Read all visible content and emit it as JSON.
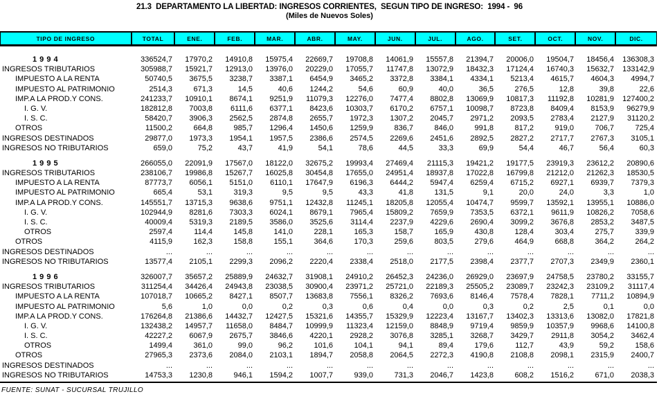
{
  "title": "21.3  DEPARTAMENTO LA LIBERTAD: INGRESOS CORRIENTES,  SEGUN TIPO DE INGRESO:  1994 -  96",
  "subtitle": "(Miles de Nuevos Soles)",
  "footer": "FUENTE: SUNAT - SUCURSAL TRUJILLO",
  "colors": {
    "header_bg": "#00FFFF",
    "border": "#000000",
    "text": "#000000",
    "page_bg": "#FFFFFF"
  },
  "table": {
    "columns": [
      "TIPO DE INGRESO",
      "TOTAL",
      "ENE.",
      "FEB.",
      "MAR.",
      "ABR.",
      "MAY.",
      "JUN.",
      "JUL.",
      "AGO.",
      "SET.",
      "OCT.",
      "NOV.",
      "DIC."
    ],
    "sections": [
      {
        "rows": [
          {
            "label": "1 9 9 4",
            "style": "year",
            "values": [
              "336524,7",
              "17970,2",
              "14910,8",
              "15975,4",
              "22669,7",
              "19708,8",
              "14061,9",
              "15557,8",
              "21394,7",
              "20006,0",
              "19504,7",
              "18456,4",
              "136308,3"
            ]
          },
          {
            "label": "INGRESOS TRIBUTARIOS",
            "indent": 0,
            "values": [
              "305988,7",
              "15921,7",
              "12913,0",
              "13976,0",
              "20229,0",
              "17055,7",
              "11747,8",
              "13072,9",
              "18432,3",
              "17124,4",
              "16740,3",
              "15632,7",
              "133142,9"
            ]
          },
          {
            "label": "IMPUESTO A LA RENTA",
            "indent": 1,
            "values": [
              "50740,5",
              "3675,5",
              "3238,7",
              "3387,1",
              "6454,9",
              "3465,2",
              "3372,8",
              "3384,1",
              "4334,1",
              "5213,4",
              "4615,7",
              "4604,3",
              "4994,7"
            ]
          },
          {
            "label": "IMPUESTO AL PATRIMONIO",
            "indent": 1,
            "values": [
              "2514,3",
              "671,3",
              "14,5",
              "40,6",
              "1244,2",
              "54,6",
              "60,9",
              "40,0",
              "36,5",
              "276,5",
              "12,8",
              "39,8",
              "22,6"
            ]
          },
          {
            "label": "IMP.A LA PROD.Y CONS.",
            "indent": 1,
            "values": [
              "241233,7",
              "10910,1",
              "8674,1",
              "9251,9",
              "11079,3",
              "12276,0",
              "7477,4",
              "8802,8",
              "13069,9",
              "10817,3",
              "11192,8",
              "10281,9",
              "127400,2"
            ]
          },
          {
            "label": "I. G. V.",
            "indent": 2,
            "values": [
              "182812,8",
              "7003,8",
              "6111,6",
              "6377,1",
              "8423,6",
              "10303,7",
              "6170,2",
              "6757,1",
              "10098,7",
              "8723,8",
              "8409,4",
              "8153,9",
              "96279,9"
            ]
          },
          {
            "label": "I. S. C.",
            "indent": 2,
            "values": [
              "58420,7",
              "3906,3",
              "2562,5",
              "2874,8",
              "2655,7",
              "1972,3",
              "1307,2",
              "2045,7",
              "2971,2",
              "2093,5",
              "2783,4",
              "2127,9",
              "31120,2"
            ]
          },
          {
            "label": "OTROS",
            "indent": 1,
            "values": [
              "11500,2",
              "664,8",
              "985,7",
              "1296,4",
              "1450,6",
              "1259,9",
              "836,7",
              "846,0",
              "991,8",
              "817,2",
              "919,0",
              "706,7",
              "725,4"
            ]
          },
          {
            "label": "INGRESOS DESTINADOS",
            "indent": 0,
            "values": [
              "29877,0",
              "1973,3",
              "1954,1",
              "1957,5",
              "2386,6",
              "2574,5",
              "2269,6",
              "2451,6",
              "2892,5",
              "2827,2",
              "2717,7",
              "2767,3",
              "3105,1"
            ]
          },
          {
            "label": "INGRESOS NO TRIBUTARIOS",
            "indent": 0,
            "values": [
              "659,0",
              "75,2",
              "43,7",
              "41,9",
              "54,1",
              "78,6",
              "44,5",
              "33,3",
              "69,9",
              "54,4",
              "46,7",
              "56,4",
              "60,3"
            ]
          }
        ]
      },
      {
        "rows": [
          {
            "label": "1 9 9 5",
            "style": "year",
            "values": [
              "266055,0",
              "22091,9",
              "17567,0",
              "18122,0",
              "32675,2",
              "19993,4",
              "27469,4",
              "21115,3",
              "19421,2",
              "19177,5",
              "23919,3",
              "23612,2",
              "20890,6"
            ]
          },
          {
            "label": "INGRESOS TRIBUTARIOS",
            "indent": 0,
            "values": [
              "238106,7",
              "19986,8",
              "15267,7",
              "16025,8",
              "30454,8",
              "17655,0",
              "24951,4",
              "18937,8",
              "17022,8",
              "16799,8",
              "21212,0",
              "21262,3",
              "18530,5"
            ]
          },
          {
            "label": "IMPUESTO A LA RENTA",
            "indent": 1,
            "values": [
              "87773,7",
              "6056,1",
              "5151,0",
              "6110,1",
              "17647,9",
              "6196,3",
              "6444,2",
              "5947,4",
              "6259,4",
              "6715,2",
              "6927,1",
              "6939,7",
              "7379,3"
            ]
          },
          {
            "label": "IMPUESTO AL PATRIMONIO",
            "indent": 1,
            "values": [
              "665,4",
              "53,1",
              "319,3",
              "9,5",
              "9,5",
              "43,3",
              "41,8",
              "131,5",
              "9,1",
              "20,0",
              "24,0",
              "3,3",
              "1,0"
            ]
          },
          {
            "label": "IMP.A LA PROD.Y CONS.",
            "indent": 1,
            "values": [
              "145551,7",
              "13715,3",
              "9638,6",
              "9751,1",
              "12432,8",
              "11245,1",
              "18205,8",
              "12055,4",
              "10474,7",
              "9599,7",
              "13592,1",
              "13955,1",
              "10886,0"
            ]
          },
          {
            "label": "I. G. V.",
            "indent": 2,
            "values": [
              "102944,9",
              "8281,6",
              "7303,3",
              "6024,1",
              "8679,1",
              "7965,4",
              "15809,2",
              "7659,9",
              "7353,5",
              "6372,1",
              "9611,9",
              "10826,2",
              "7058,6"
            ]
          },
          {
            "label": "I. S. C.",
            "indent": 2,
            "values": [
              "40009,4",
              "5319,3",
              "2189,5",
              "3586,0",
              "3525,6",
              "3114,4",
              "2237,9",
              "4229,6",
              "2690,4",
              "3099,2",
              "3676,8",
              "2853,2",
              "3487,5"
            ]
          },
          {
            "label": "OTROS",
            "indent": 2,
            "values": [
              "2597,4",
              "114,4",
              "145,8",
              "141,0",
              "228,1",
              "165,3",
              "158,7",
              "165,9",
              "430,8",
              "128,4",
              "303,4",
              "275,7",
              "339,9"
            ]
          },
          {
            "label": "OTROS",
            "indent": 1,
            "values": [
              "4115,9",
              "162,3",
              "158,8",
              "155,1",
              "364,6",
              "170,3",
              "259,6",
              "803,5",
              "279,6",
              "464,9",
              "668,8",
              "364,2",
              "264,2"
            ]
          },
          {
            "label": "INGRESOS DESTINADOS",
            "indent": 0,
            "values": [
              "...",
              "...",
              "...",
              "...",
              "...",
              "...",
              "...",
              "...",
              "...",
              "...",
              "...",
              "...",
              "..."
            ]
          },
          {
            "label": "INGRESOS NO TRIBUTARIOS",
            "indent": 0,
            "values": [
              "13577,4",
              "2105,1",
              "2299,3",
              "2096,2",
              "2220,4",
              "2338,4",
              "2518,0",
              "2177,5",
              "2398,4",
              "2377,7",
              "2707,3",
              "2349,9",
              "2360,1"
            ]
          }
        ]
      },
      {
        "rows": [
          {
            "label": "1 9 9 6",
            "style": "year",
            "values": [
              "326007,7",
              "35657,2",
              "25889,9",
              "24632,7",
              "31908,1",
              "24910,2",
              "26452,3",
              "24236,0",
              "26929,0",
              "23697,9",
              "24758,5",
              "23780,2",
              "33155,7"
            ]
          },
          {
            "label": "INGRESOS TRIBUTARIOS",
            "indent": 0,
            "values": [
              "311254,4",
              "34426,4",
              "24943,8",
              "23038,5",
              "30900,4",
              "23971,2",
              "25721,0",
              "22189,3",
              "25505,2",
              "23089,7",
              "23242,3",
              "23109,2",
              "31117,4"
            ]
          },
          {
            "label": "IMPUESTO A LA RENTA",
            "indent": 1,
            "values": [
              "107018,7",
              "10665,2",
              "8427,1",
              "8507,7",
              "13683,8",
              "7556,1",
              "8326,2",
              "7693,6",
              "8146,4",
              "7578,4",
              "7828,1",
              "7711,2",
              "10894,9"
            ]
          },
          {
            "label": "IMPUESTO AL PATRIMONIO",
            "indent": 1,
            "values": [
              "5,6",
              "1,0",
              "0,0",
              "0,2",
              "0,3",
              "0,6",
              "0,4",
              "0,0",
              "0,3",
              "0,2",
              "2,5",
              "0,1",
              "0,0"
            ]
          },
          {
            "label": "IMP.A LA PROD.Y CONS.",
            "indent": 1,
            "values": [
              "176264,8",
              "21386,6",
              "14432,7",
              "12427,5",
              "15321,6",
              "14355,7",
              "15329,9",
              "12223,4",
              "13167,7",
              "13402,3",
              "13313,6",
              "13082,0",
              "17821,8"
            ]
          },
          {
            "label": "I. G. V.",
            "indent": 2,
            "values": [
              "132438,2",
              "14957,7",
              "11658,0",
              "8484,7",
              "10999,9",
              "11323,4",
              "12159,0",
              "8848,9",
              "9719,4",
              "9859,9",
              "10357,9",
              "9968,6",
              "14100,8"
            ]
          },
          {
            "label": "I. S. C.",
            "indent": 2,
            "values": [
              "42227,2",
              "6067,9",
              "2675,7",
              "3846,6",
              "4220,1",
              "2928,2",
              "3076,8",
              "3285,1",
              "3268,7",
              "3429,7",
              "2911,8",
              "3054,2",
              "3462,4"
            ]
          },
          {
            "label": "OTROS",
            "indent": 2,
            "values": [
              "1499,4",
              "361,0",
              "99,0",
              "96,2",
              "101,6",
              "104,1",
              "94,1",
              "89,4",
              "179,6",
              "112,7",
              "43,9",
              "59,2",
              "158,6"
            ]
          },
          {
            "label": "OTROS",
            "indent": 1,
            "values": [
              "27965,3",
              "2373,6",
              "2084,0",
              "2103,1",
              "1894,7",
              "2058,8",
              "2064,5",
              "2272,3",
              "4190,8",
              "2108,8",
              "2098,1",
              "2315,9",
              "2400,7"
            ]
          },
          {
            "label": "INGRESOS DESTINADOS",
            "indent": 0,
            "values": [
              "...",
              "...",
              "...",
              "...",
              "...",
              "...",
              "...",
              "...",
              "...",
              "...",
              "...",
              "...",
              "..."
            ]
          },
          {
            "label": "INGRESOS NO TRIBUTARIOS",
            "indent": 0,
            "values": [
              "14753,3",
              "1230,8",
              "946,1",
              "1594,2",
              "1007,7",
              "939,0",
              "731,3",
              "2046,7",
              "1423,8",
              "608,2",
              "1516,2",
              "671,0",
              "2038,3"
            ]
          }
        ]
      }
    ]
  }
}
